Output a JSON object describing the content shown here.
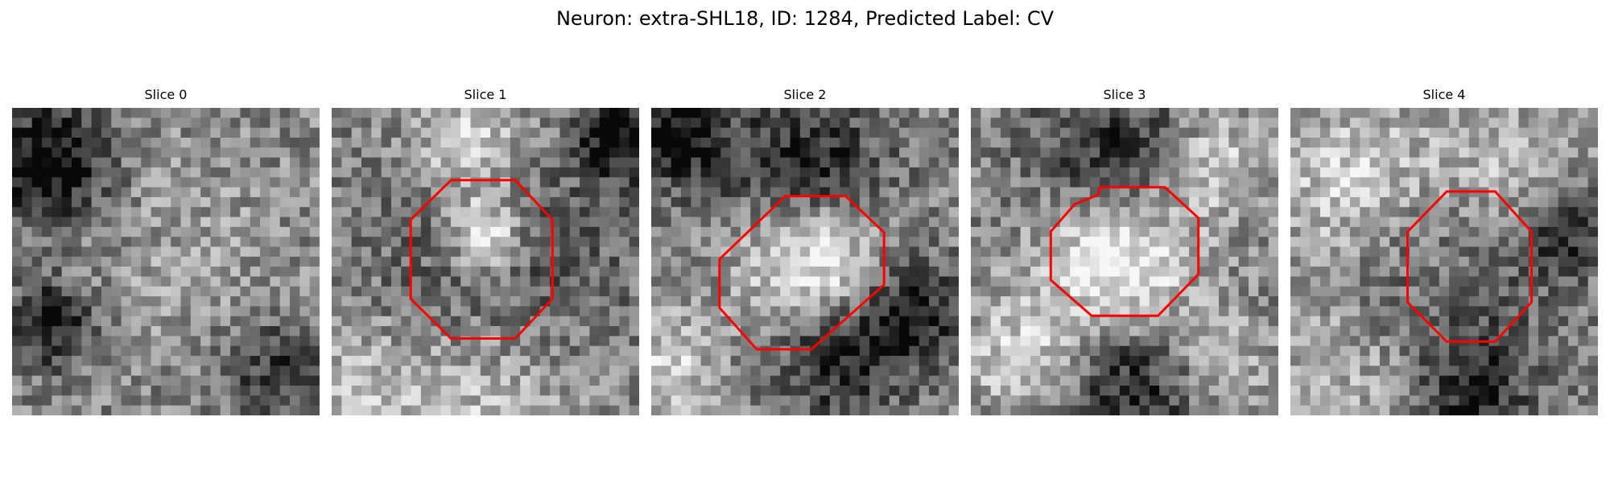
{
  "figure": {
    "title": "Neuron: extra-SHL18, ID: 1284, Predicted Label: CV"
  },
  "panels": [
    {
      "title": "Slice 0"
    },
    {
      "title": "Slice 1"
    },
    {
      "title": "Slice 2"
    },
    {
      "title": "Slice 3"
    },
    {
      "title": "Slice 4"
    }
  ],
  "colors": {
    "contour": "#ff0000",
    "background": "#ffffff"
  }
}
